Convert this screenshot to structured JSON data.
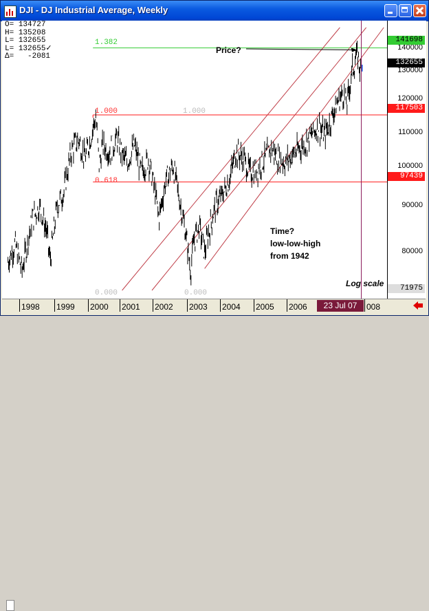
{
  "window": {
    "title": "DJI - DJ Industrial Average, Weekly",
    "buttons": [
      "minimize",
      "maximize",
      "close"
    ]
  },
  "ohlc": [
    {
      "label": "O=",
      "value": "134727"
    },
    {
      "label": "H=",
      "value": "135208"
    },
    {
      "label": "L=",
      "value": "132655"
    },
    {
      "label": "L=",
      "value": "132655✓"
    },
    {
      "label": "Δ=",
      "value": "  -2081"
    }
  ],
  "price_axis": {
    "ticks": [
      "140000",
      "130000",
      "120000",
      "110000",
      "100000",
      "90000",
      "80000"
    ],
    "tags": [
      {
        "text": "141698",
        "bg": "#33cc33",
        "fg": "#000000"
      },
      {
        "text": "132655",
        "bg": "#000000",
        "fg": "#ffffff"
      },
      {
        "text": "117503",
        "bg": "#ff1a1a",
        "fg": "#ffffff"
      },
      {
        "text": "97439",
        "bg": "#ff1a1a",
        "fg": "#ffffff"
      },
      {
        "text": "71975",
        "bg": "#dddddd",
        "fg": "#000000"
      }
    ]
  },
  "fib_labels": [
    {
      "text": "1.382",
      "color": "#33cc33"
    },
    {
      "text": "1.000",
      "color": "#ff3333"
    },
    {
      "text": "1.000",
      "color": "#bbbbbb"
    },
    {
      "text": "0.618",
      "color": "#ff3333"
    },
    {
      "text": "0.000",
      "color": "#bbbbbb"
    },
    {
      "text": "0.000",
      "color": "#bbbbbb"
    }
  ],
  "annotations": {
    "price": "Price?",
    "time": "Time?\nlow-low-high\nfrom 1942",
    "scale": "Log scale"
  },
  "time_axis": {
    "years": [
      "1998",
      "1999",
      "2000",
      "2001",
      "2002",
      "2003",
      "2004",
      "2005",
      "2006",
      "008"
    ],
    "current_date": "23 Jul 07"
  },
  "colors": {
    "fib_1382": "#33cc33",
    "fib_red": "#ff1a1a",
    "channel": "#c0404a",
    "cursor": "#8b1a5a",
    "price": "#000000",
    "last_bar": "#1a5ae0"
  },
  "chart_data": {
    "type": "line",
    "title": "DJI - DJ Industrial Average, Weekly",
    "xlabel": "",
    "ylabel": "",
    "x_unit": "year",
    "y_scale": "log",
    "ylim": [
      71975,
      150000
    ],
    "xlim": [
      1997.4,
      2008.2
    ],
    "grid": false,
    "series": [
      {
        "name": "",
        "x": [
          1997.5,
          1997.7,
          1997.9,
          1998.2,
          1998.4,
          1998.6,
          1998.7,
          1998.9,
          1999.1,
          1999.3,
          1999.5,
          1999.7,
          1999.85,
          2000.0,
          2000.1,
          2000.2,
          2000.4,
          2000.6,
          2000.8,
          2000.9,
          2001.1,
          2001.3,
          2001.5,
          2001.7,
          2001.8,
          2002.0,
          2002.2,
          2002.4,
          2002.55,
          2002.7,
          2002.8,
          2002.95,
          2003.1,
          2003.2,
          2003.4,
          2003.6,
          2003.8,
          2004.0,
          2004.2,
          2004.4,
          2004.6,
          2004.8,
          2005.0,
          2005.2,
          2005.4,
          2005.6,
          2005.8,
          2006.0,
          2006.2,
          2006.35,
          2006.5,
          2006.6,
          2006.75,
          2006.9,
          2007.05,
          2007.15,
          2007.3,
          2007.45,
          2007.55
        ],
        "values": [
          78000,
          82000,
          76000,
          88000,
          91000,
          85000,
          78000,
          91000,
          95000,
          106000,
          110000,
          104000,
          110000,
          117000,
          102000,
          108000,
          106000,
          110000,
          104000,
          103000,
          108000,
          100000,
          104000,
          94000,
          88000,
          98000,
          102000,
          92000,
          85000,
          76000,
          83000,
          86000,
          80000,
          84000,
          91000,
          94000,
          98000,
          106000,
          104000,
          100000,
          101000,
          104000,
          107000,
          104000,
          103000,
          105000,
          107000,
          109000,
          112000,
          114000,
          111000,
          113000,
          118000,
          122000,
          125000,
          121000,
          133000,
          139000,
          132655
        ]
      }
    ],
    "horizontal_levels": [
      {
        "label": "1.382",
        "value": 141698
      },
      {
        "label": "1.000",
        "value": 117503
      },
      {
        "label": "0.618",
        "value": 97439
      }
    ],
    "cursor_date": "23 Jul 07",
    "annotations": [
      "Price?",
      "Time?",
      "low-low-high",
      "from 1942",
      "Log scale"
    ]
  }
}
